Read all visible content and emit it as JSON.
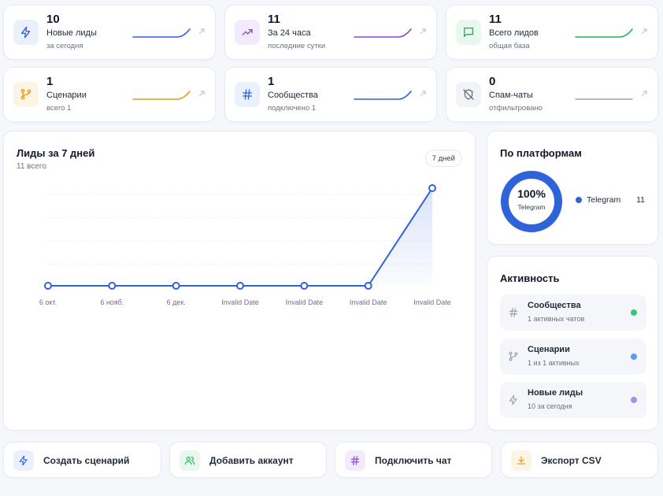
{
  "stats": [
    {
      "value": "10",
      "label": "Новые лиды",
      "sub": "за сегодня",
      "icon": "lightning-icon",
      "color": "#2f63d9",
      "bg": "#eaf1fd"
    },
    {
      "value": "11",
      "label": "За 24 часа",
      "sub": "последние сутки",
      "icon": "trending-up-icon",
      "color": "#8b45d9",
      "bg": "#f3ebfc"
    },
    {
      "value": "11",
      "label": "Всего лидов",
      "sub": "общая база",
      "icon": "chat-bubble-icon",
      "color": "#22b35e",
      "bg": "#e8f8ef"
    },
    {
      "value": "1",
      "label": "Сценарии",
      "sub": "всего 1",
      "icon": "branch-icon",
      "color": "#e39b12",
      "bg": "#fdf4e3"
    },
    {
      "value": "1",
      "label": "Сообщества",
      "sub": "подключено 1",
      "icon": "hash-icon",
      "color": "#2f63d9",
      "bg": "#eaf1fd"
    },
    {
      "value": "0",
      "label": "Спам-чаты",
      "sub": "отфильтровано",
      "icon": "shield-off-icon",
      "color": "#6b7280",
      "bg": "#f1f3f6"
    }
  ],
  "leads_chart": {
    "title": "Лиды за 7 дней",
    "subtitle": "11 всего",
    "range_label": "7 дней"
  },
  "chart_data": {
    "type": "line",
    "categories": [
      "6 окт.",
      "6 нояб.",
      "6 дек.",
      "Invalid Date",
      "Invalid Date",
      "Invalid Date",
      "Invalid Date"
    ],
    "values": [
      0,
      0,
      0,
      0,
      0,
      0,
      11
    ],
    "ylim": [
      0,
      11
    ],
    "grid": true,
    "color": "#2f63d9"
  },
  "platforms": {
    "title": "По платформам",
    "percent": "100%",
    "center_label": "Telegram",
    "legend": [
      {
        "name": "Telegram",
        "count": "11",
        "color": "#2f63d9"
      }
    ],
    "share": 1.0
  },
  "activity": {
    "title": "Активность",
    "items": [
      {
        "name": "Сообщества",
        "sub": "1 активных чатов",
        "icon": "hash-icon",
        "dot": "#34c77b"
      },
      {
        "name": "Сценарии",
        "sub": "1 из 1 активных",
        "icon": "branch-icon",
        "dot": "#5b9cf0"
      },
      {
        "name": "Новые лиды",
        "sub": "10 за сегодня",
        "icon": "lightning-icon",
        "dot": "#a98ee8"
      }
    ]
  },
  "actions": [
    {
      "label": "Создать сценарий",
      "icon": "lightning-icon",
      "color": "#2f63d9",
      "bg": "#eaf1fd"
    },
    {
      "label": "Добавить аккаунт",
      "icon": "users-icon",
      "color": "#22b35e",
      "bg": "#e8f8ef"
    },
    {
      "label": "Подключить чат",
      "icon": "hash-icon",
      "color": "#8b45d9",
      "bg": "#f3ebfc"
    },
    {
      "label": "Экспорт CSV",
      "icon": "download-icon",
      "color": "#e39b12",
      "bg": "#fdf4e3"
    }
  ]
}
